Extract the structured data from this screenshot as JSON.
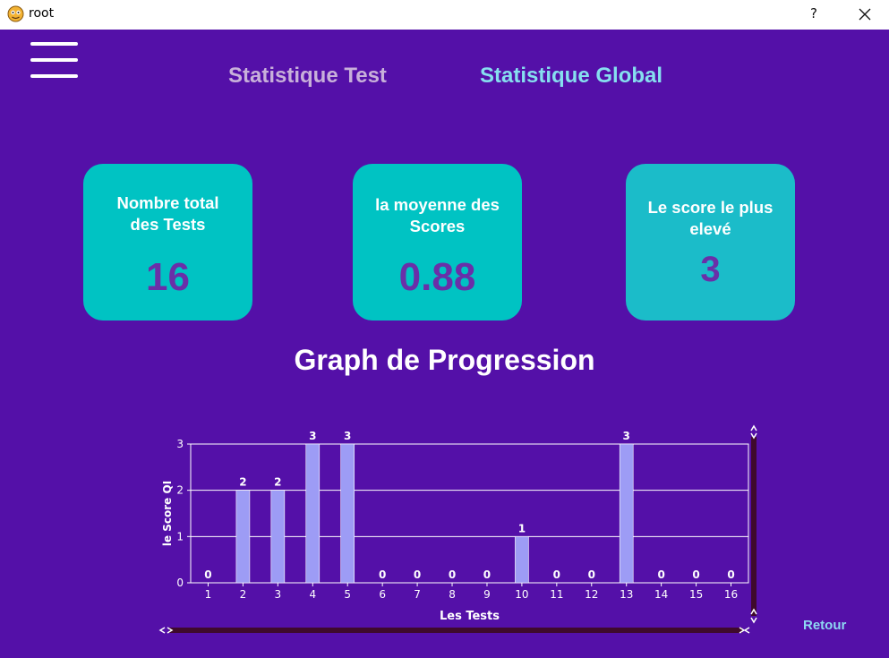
{
  "window": {
    "title": "root",
    "help_label": "?"
  },
  "tabs": [
    {
      "label": "Statistique Test"
    },
    {
      "label": "Statistique Global"
    }
  ],
  "cards": [
    {
      "label_line1": "Nombre total",
      "label_line2": "des Tests",
      "value": "16"
    },
    {
      "label_line1": "la moyenne des",
      "label_line2": "Scores",
      "value": "0.88"
    },
    {
      "label_line1": "Le score le plus",
      "label_line2": "elevé",
      "value": "3"
    }
  ],
  "graph": {
    "title": "Graph de Progression"
  },
  "retour_label": "Retour",
  "colors": {
    "background": "#5410a8",
    "card": "#00c3c3",
    "card_value": "#6a2fa8",
    "bar": "#9d9cf5",
    "tab_active": "#86dfef",
    "tab_inactive": "#c8b0da"
  },
  "chart_data": {
    "type": "bar",
    "categories": [
      "1",
      "2",
      "3",
      "4",
      "5",
      "6",
      "7",
      "8",
      "9",
      "10",
      "11",
      "12",
      "13",
      "14",
      "15",
      "16"
    ],
    "values": [
      0,
      2,
      2,
      3,
      3,
      0,
      0,
      0,
      0,
      1,
      0,
      0,
      3,
      0,
      0,
      0
    ],
    "xlabel": "Les Tests",
    "ylabel": "le Score QI",
    "ylim": [
      0,
      3
    ],
    "yticks": [
      0,
      1,
      2,
      3
    ],
    "grid": true,
    "data_labels": true
  }
}
